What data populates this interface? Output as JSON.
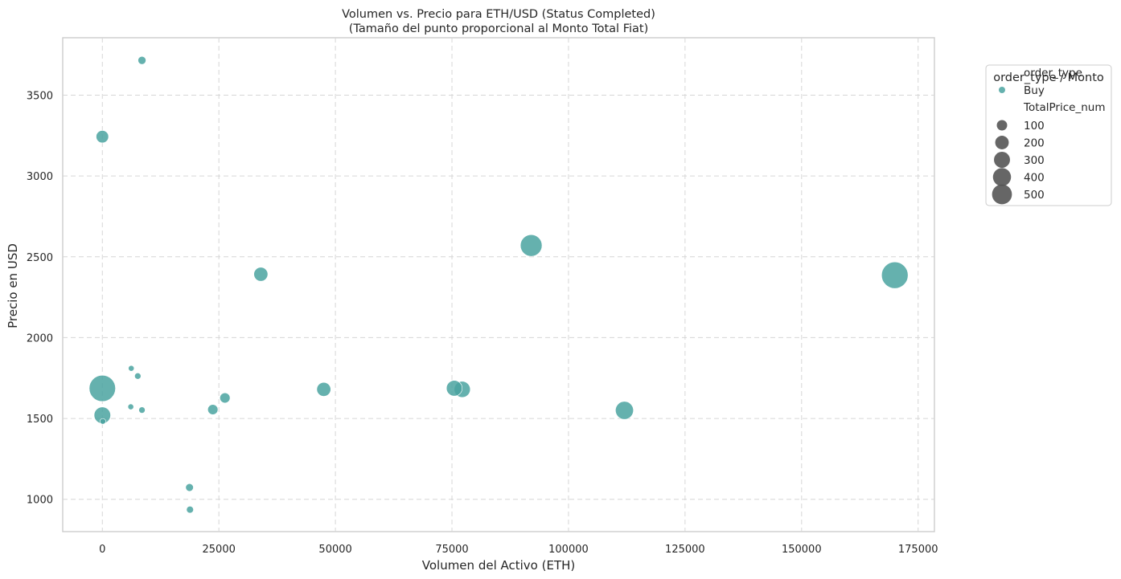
{
  "chart_data": {
    "type": "scatter",
    "title_line1": "Volumen vs. Precio para ETH/USD (Status Completed)",
    "title_line2": "(Tamaño del punto proporcional al Monto Total Fiat)",
    "xlabel": "Volumen del Activo (ETH)",
    "ylabel": "Precio en USD",
    "xlim": [
      -8500,
      178500
    ],
    "ylim": [
      800,
      3855
    ],
    "xticks": [
      0,
      25000,
      50000,
      75000,
      100000,
      125000,
      150000,
      175000
    ],
    "xtick_labels": [
      "0",
      "25000",
      "50000",
      "75000",
      "100000",
      "125000",
      "150000",
      "175000"
    ],
    "yticks": [
      1000,
      1500,
      2000,
      2500,
      3000,
      3500
    ],
    "ytick_labels": [
      "1000",
      "1500",
      "2000",
      "2500",
      "3000",
      "3500"
    ],
    "grid": true,
    "legend_position": "outside-right",
    "color": "#4aa3a0",
    "size_color": "#555555",
    "legend": {
      "title": "order_type / Monto",
      "hue_header": "order_type",
      "hue_items": [
        {
          "label": "Buy"
        }
      ],
      "size_header": "TotalPrice_num",
      "size_items": [
        {
          "label": "100",
          "value": 100
        },
        {
          "label": "200",
          "value": 200
        },
        {
          "label": "300",
          "value": 300
        },
        {
          "label": "400",
          "value": 400
        },
        {
          "label": "500",
          "value": 500
        }
      ]
    },
    "points": [
      {
        "x": 8500,
        "y": 3715,
        "size": 20
      },
      {
        "x": 0,
        "y": 3243,
        "size": 80
      },
      {
        "x": 34000,
        "y": 2392,
        "size": 110
      },
      {
        "x": 92000,
        "y": 2570,
        "size": 330
      },
      {
        "x": 170000,
        "y": 2386,
        "size": 530
      },
      {
        "x": 0,
        "y": 1686,
        "size": 520
      },
      {
        "x": 6200,
        "y": 1810,
        "size": 5
      },
      {
        "x": 7600,
        "y": 1762,
        "size": 8
      },
      {
        "x": 47500,
        "y": 1680,
        "size": 110
      },
      {
        "x": 75500,
        "y": 1687,
        "size": 150
      },
      {
        "x": 77200,
        "y": 1680,
        "size": 160
      },
      {
        "x": 26300,
        "y": 1627,
        "size": 45
      },
      {
        "x": 23700,
        "y": 1555,
        "size": 45
      },
      {
        "x": 112000,
        "y": 1550,
        "size": 210
      },
      {
        "x": 0,
        "y": 1520,
        "size": 170
      },
      {
        "x": 6100,
        "y": 1572,
        "size": 5
      },
      {
        "x": 8500,
        "y": 1552,
        "size": 8
      },
      {
        "x": 100,
        "y": 1482,
        "size": 5
      },
      {
        "x": 18700,
        "y": 1073,
        "size": 18
      },
      {
        "x": 18800,
        "y": 936,
        "size": 12
      }
    ]
  }
}
